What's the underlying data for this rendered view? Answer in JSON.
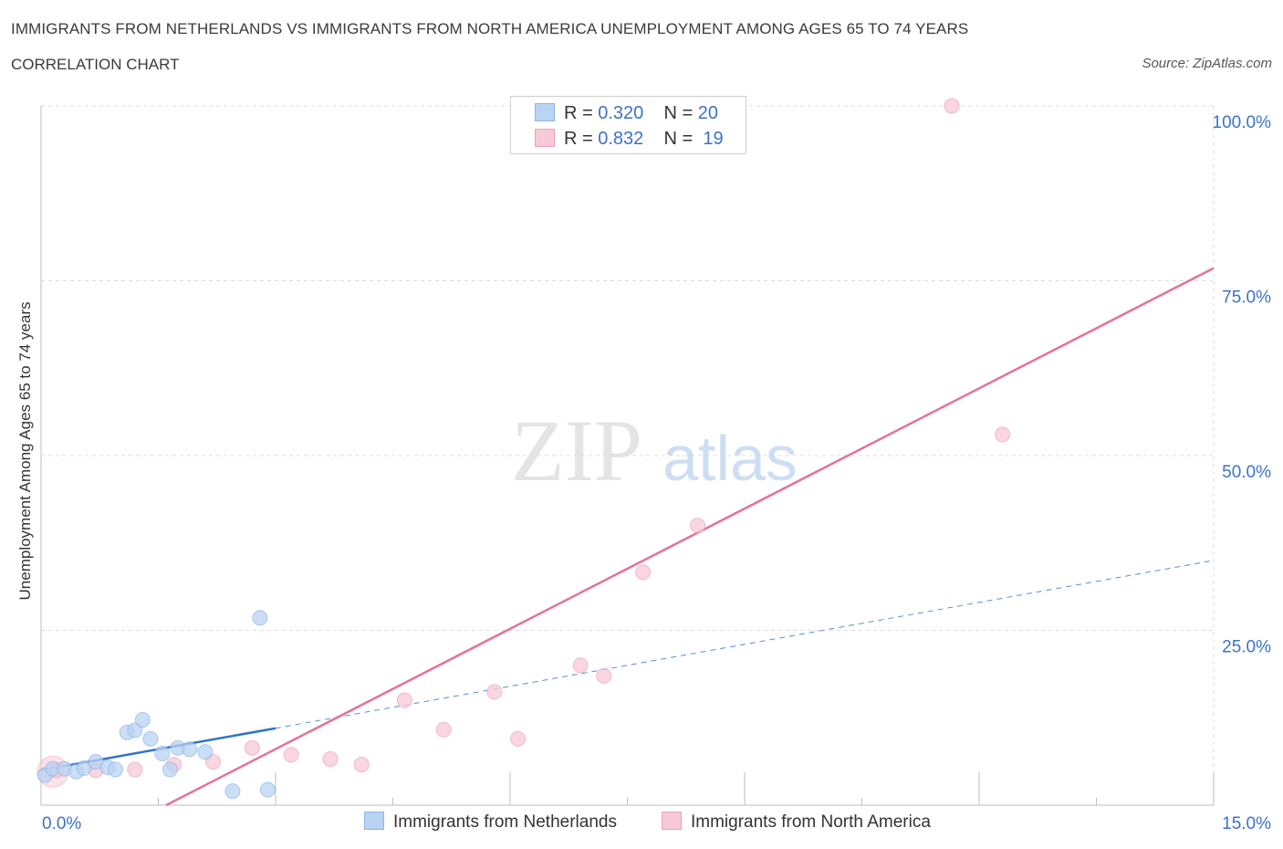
{
  "title": "IMMIGRANTS FROM NETHERLANDS VS IMMIGRANTS FROM NORTH AMERICA UNEMPLOYMENT AMONG AGES 65 TO 74 YEARS",
  "subtitle": "CORRELATION CHART",
  "source": "Source: ZipAtlas.com",
  "watermark": {
    "zip": "ZIP",
    "atlas": "atlas"
  },
  "colors": {
    "blue_fill": "#b9d3f3",
    "blue_stroke": "#8fb4e6",
    "blue_line": "#2f74c8",
    "pink_fill": "#f8c9d6",
    "pink_stroke": "#eca3b8",
    "pink_line": "#e4729a",
    "tick_label": "#3b73c8",
    "grid": "#dcdcdc"
  },
  "legend": {
    "rows": [
      {
        "r_label": "R = ",
        "r_value": "0.320",
        "n_label": "N = ",
        "n_value": "20",
        "series": "blue"
      },
      {
        "r_label": "R = ",
        "r_value": "0.832",
        "n_label": "N = ",
        "n_value": "19",
        "series": "pink"
      }
    ]
  },
  "bottom_legend": [
    "Immigrants from Netherlands",
    "Immigrants from North America"
  ],
  "chart_data": {
    "type": "scatter",
    "title": "IMMIGRANTS FROM NETHERLANDS VS IMMIGRANTS FROM NORTH AMERICA UNEMPLOYMENT AMONG AGES 65 TO 74 YEARS",
    "xlabel": "",
    "ylabel": "Unemployment Among Ages 65 to 74 years",
    "xlim": [
      0,
      15
    ],
    "ylim": [
      0,
      100
    ],
    "x_tick_labels": [
      "0.0%",
      "15.0%"
    ],
    "y_ticks": [
      25,
      50,
      75,
      100
    ],
    "y_tick_labels": [
      "25.0%",
      "50.0%",
      "75.0%",
      "100.0%"
    ],
    "grid": true,
    "legend_position": "top-center",
    "series": [
      {
        "name": "Immigrants from Netherlands",
        "color": "blue",
        "points": [
          {
            "x": 0.05,
            "y": 4.3
          },
          {
            "x": 0.15,
            "y": 5.2
          },
          {
            "x": 0.3,
            "y": 5.2
          },
          {
            "x": 0.45,
            "y": 4.8
          },
          {
            "x": 0.55,
            "y": 5.3
          },
          {
            "x": 0.7,
            "y": 6.2
          },
          {
            "x": 0.85,
            "y": 5.4
          },
          {
            "x": 0.95,
            "y": 5.1
          },
          {
            "x": 1.1,
            "y": 10.4
          },
          {
            "x": 1.2,
            "y": 10.7
          },
          {
            "x": 1.3,
            "y": 12.2
          },
          {
            "x": 1.4,
            "y": 9.5
          },
          {
            "x": 1.55,
            "y": 7.4
          },
          {
            "x": 1.65,
            "y": 5.1
          },
          {
            "x": 1.75,
            "y": 8.2
          },
          {
            "x": 1.9,
            "y": 8.0
          },
          {
            "x": 2.1,
            "y": 7.6
          },
          {
            "x": 2.45,
            "y": 2.0
          },
          {
            "x": 2.8,
            "y": 26.8
          },
          {
            "x": 2.9,
            "y": 2.2
          }
        ],
        "trend": {
          "x": [
            0,
            3.0
          ],
          "y": [
            5.0,
            11.0
          ],
          "dashed_extension_to_x": 15,
          "dashed_extension_y": 35.0
        }
      },
      {
        "name": "Immigrants from North America",
        "color": "pink",
        "points": [
          {
            "x": 0.2,
            "y": 5.0
          },
          {
            "x": 0.7,
            "y": 5.0
          },
          {
            "x": 1.2,
            "y": 5.1
          },
          {
            "x": 1.7,
            "y": 5.8
          },
          {
            "x": 2.2,
            "y": 6.2
          },
          {
            "x": 2.7,
            "y": 8.2
          },
          {
            "x": 3.2,
            "y": 7.2
          },
          {
            "x": 3.7,
            "y": 6.6
          },
          {
            "x": 4.1,
            "y": 5.8
          },
          {
            "x": 4.65,
            "y": 15.0
          },
          {
            "x": 5.15,
            "y": 10.8
          },
          {
            "x": 5.8,
            "y": 16.2
          },
          {
            "x": 6.1,
            "y": 9.5
          },
          {
            "x": 6.9,
            "y": 20.0
          },
          {
            "x": 7.2,
            "y": 18.5
          },
          {
            "x": 7.7,
            "y": 33.3
          },
          {
            "x": 8.4,
            "y": 40.0
          },
          {
            "x": 11.65,
            "y": 100.0
          },
          {
            "x": 12.3,
            "y": 53.0
          }
        ],
        "trend": {
          "x": [
            1.6,
            15.0
          ],
          "y": [
            0.0,
            76.8
          ]
        }
      }
    ]
  }
}
